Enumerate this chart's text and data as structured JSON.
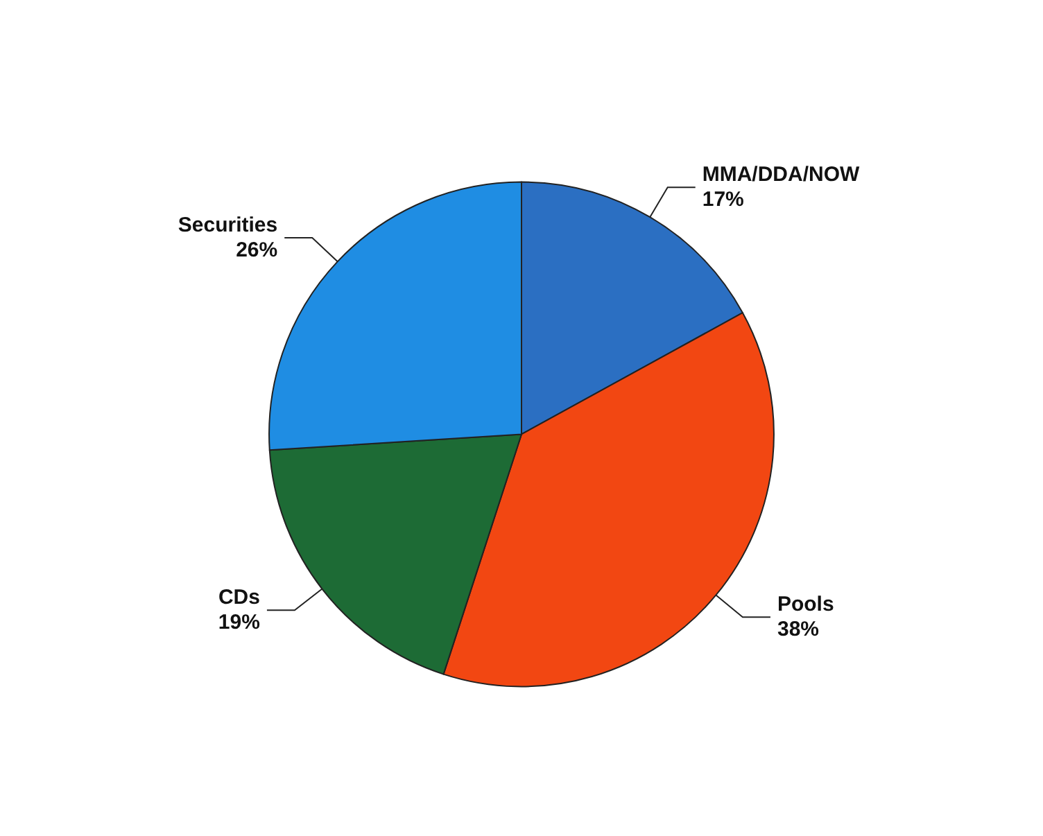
{
  "chart_data": {
    "type": "pie",
    "categories": [
      "MMA/DDA/NOW",
      "Pools",
      "CDs",
      "Securities"
    ],
    "values": [
      17,
      38,
      19,
      26
    ],
    "colors": [
      "#2b6fc2",
      "#f24712",
      "#1d6b35",
      "#1f8de3"
    ],
    "legend": false,
    "value_labels": [
      "17%",
      "38%",
      "19%",
      "26%"
    ]
  }
}
